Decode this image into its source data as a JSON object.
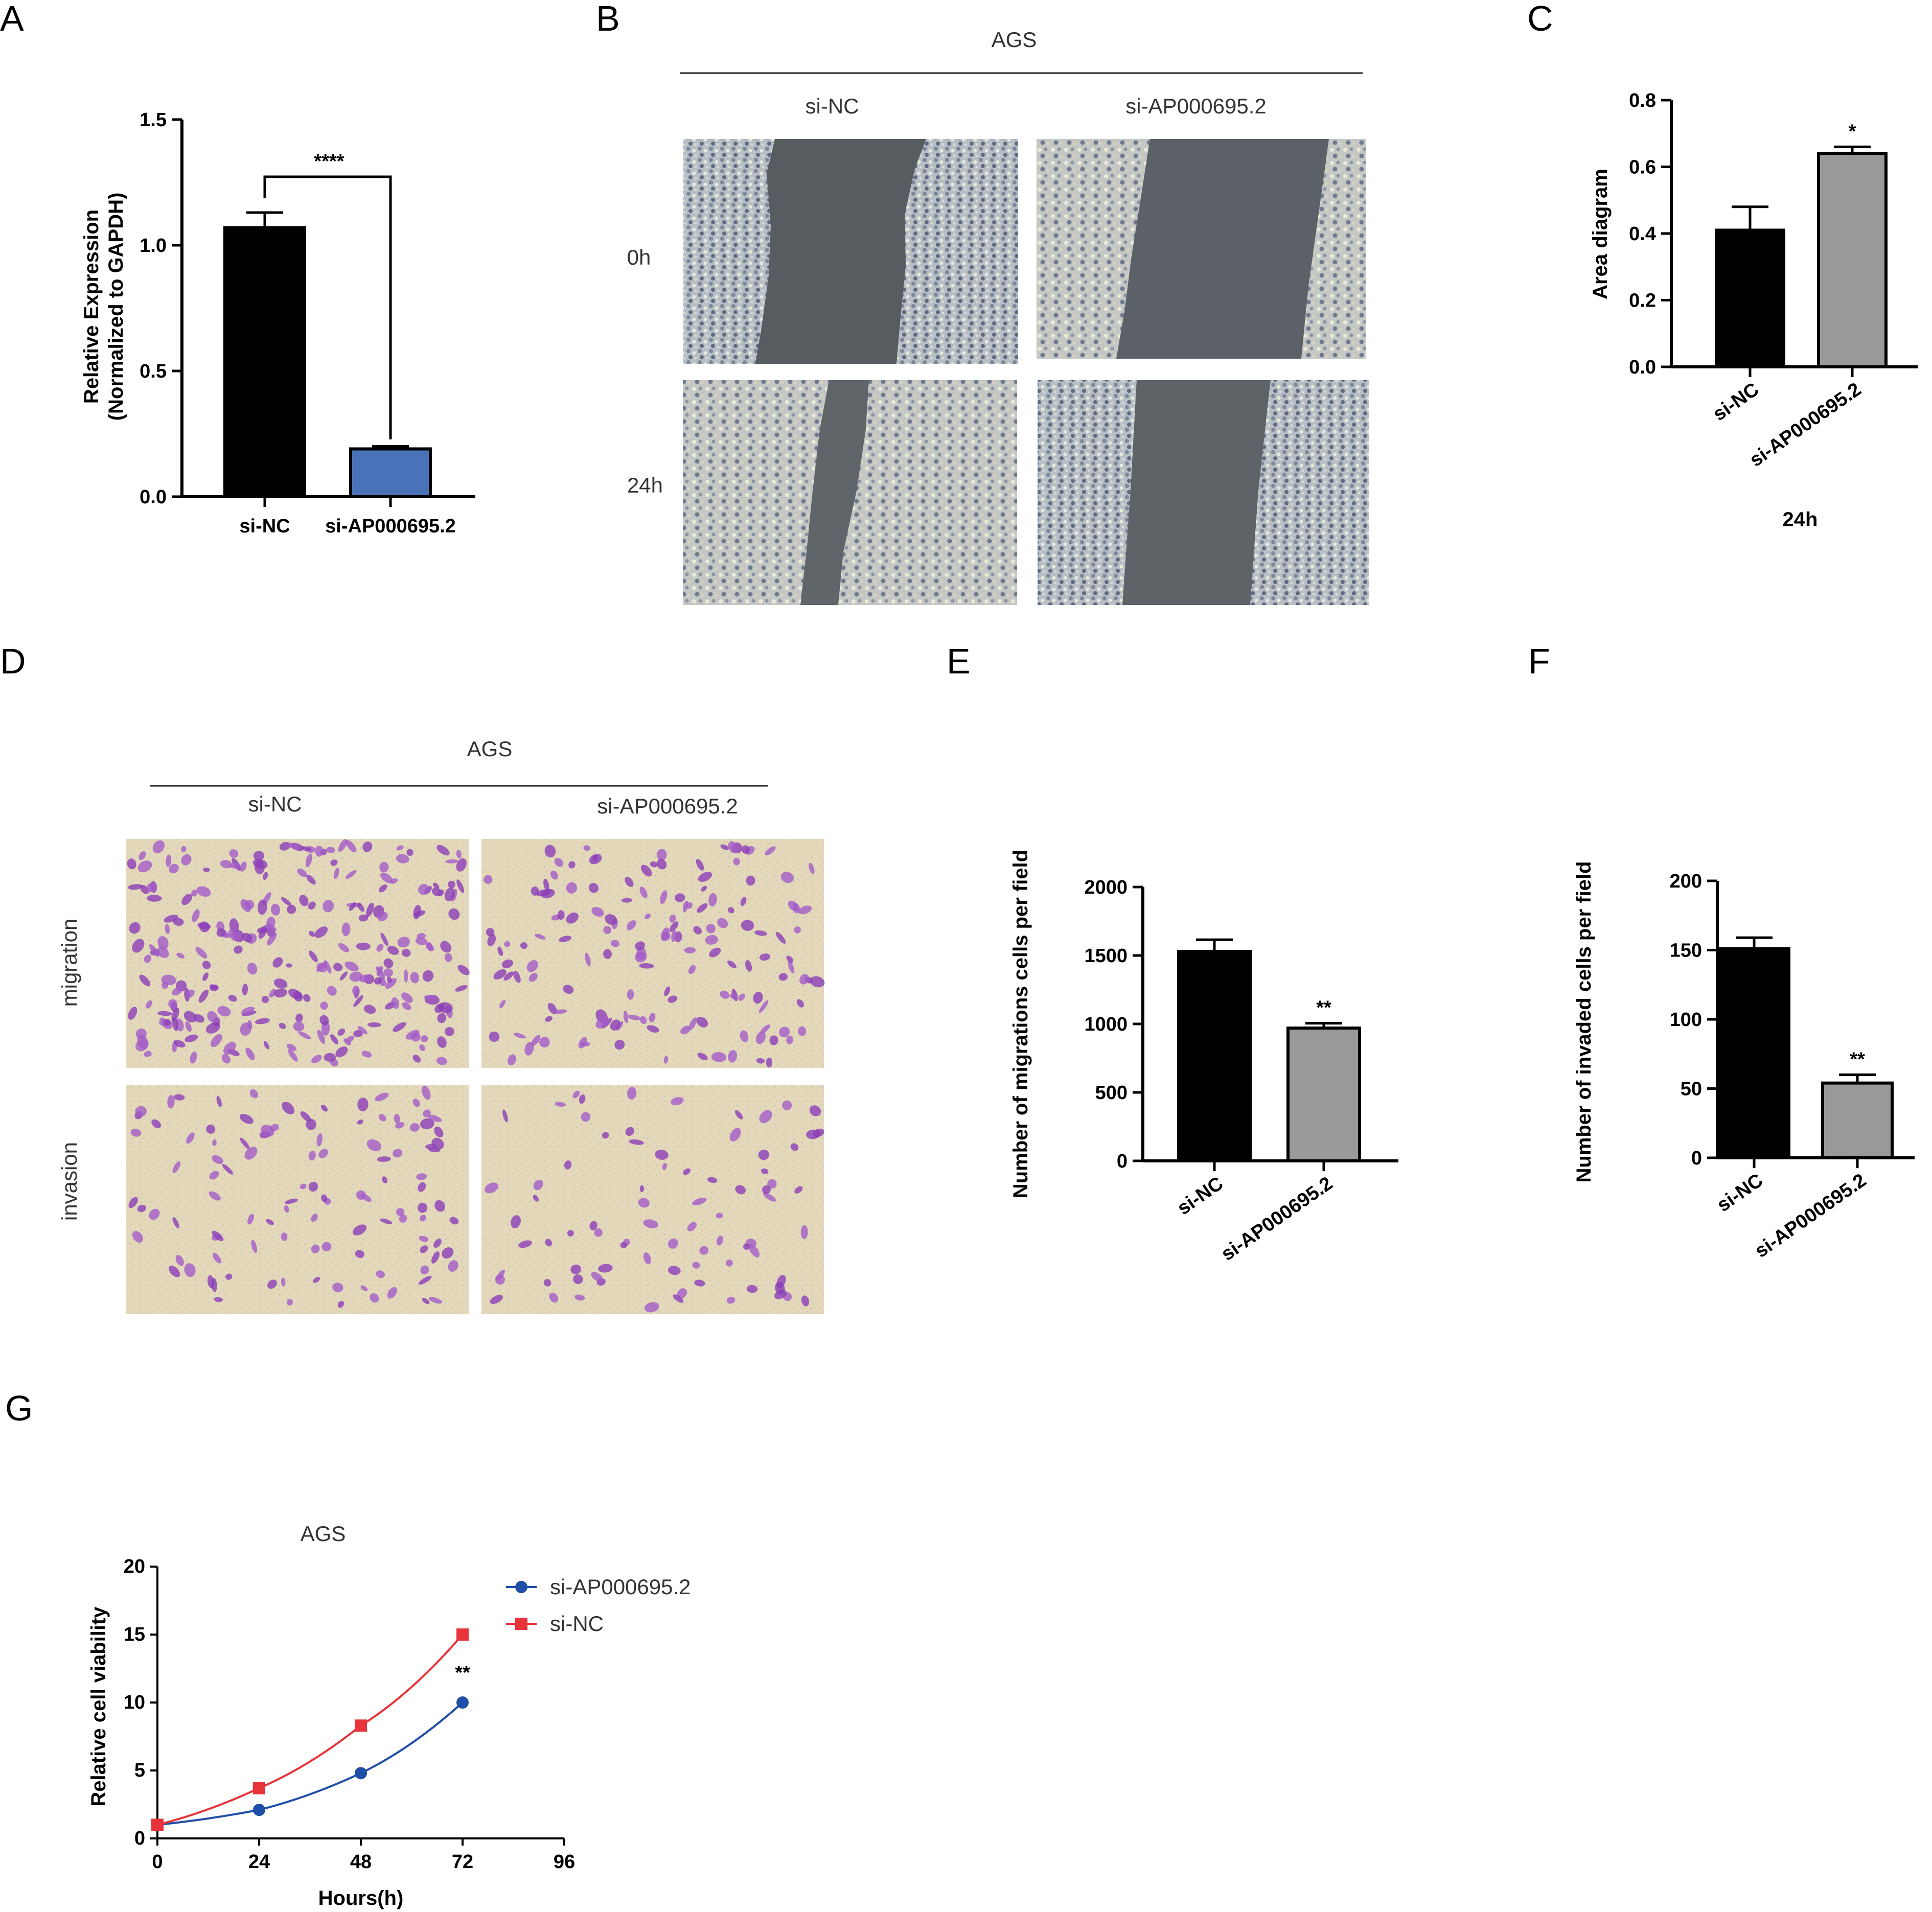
{
  "panels": {
    "A": {
      "letter": "A"
    },
    "B": {
      "letter": "B",
      "cell_line": "AGS",
      "col_labels": [
        "si-NC",
        "si-AP000695.2"
      ],
      "row_labels": [
        "0h",
        "24h"
      ]
    },
    "C": {
      "letter": "C",
      "time_label": "24h"
    },
    "D": {
      "letter": "D",
      "cell_line": "AGS",
      "col_labels": [
        "si-NC",
        "si-AP000695.2"
      ],
      "row_labels": [
        "migration",
        "invasion"
      ]
    },
    "E": {
      "letter": "E"
    },
    "F": {
      "letter": "F"
    },
    "G": {
      "letter": "G"
    }
  },
  "colors": {
    "black_bar": "#000000",
    "blue_bar": "#4a72b8",
    "gray_bar": "#999999",
    "si_ap_line": "#1f4ea8",
    "si_nc_line": "#e8333a",
    "wound_gap": "#565c60",
    "cell_bg": "#b9bfc7",
    "transwell_bg": "#e2d7b8",
    "transwell_cell": "#8b3fb8"
  },
  "chart_data": [
    {
      "panel": "A",
      "type": "bar",
      "categories": [
        "si-NC",
        "si-AP000695.2"
      ],
      "values": [
        1.07,
        0.19
      ],
      "errors": [
        0.06,
        0.01
      ],
      "bar_colors": [
        "#000000",
        "#4a72b8"
      ],
      "ylabel_lines": [
        "Relative Expression",
        "(Normalized to GAPDH)"
      ],
      "yticks": [
        "0.0",
        "0.5",
        "1.0",
        "1.5"
      ],
      "ylim": [
        0,
        1.5
      ],
      "significance": "****"
    },
    {
      "panel": "C",
      "type": "bar",
      "categories": [
        "si-NC",
        "si-AP000695.2"
      ],
      "values": [
        0.41,
        0.64
      ],
      "errors": [
        0.07,
        0.02
      ],
      "bar_colors": [
        "#000000",
        "#999999"
      ],
      "ylabel": "Area diagram",
      "xlabel": "24h",
      "yticks": [
        "0.0",
        "0.2",
        "0.4",
        "0.6",
        "0.8"
      ],
      "ylim": [
        0,
        0.8
      ],
      "annotations": [
        "",
        "*"
      ]
    },
    {
      "panel": "E",
      "type": "bar",
      "categories": [
        "si-NC",
        "si-AP000695.2"
      ],
      "values": [
        1530,
        970
      ],
      "errors": [
        85,
        35
      ],
      "bar_colors": [
        "#000000",
        "#999999"
      ],
      "ylabel": "Number of migrations cells per field",
      "yticks": [
        "0",
        "500",
        "1000",
        "1500",
        "2000"
      ],
      "ylim": [
        0,
        2000
      ],
      "annotations": [
        "",
        "**"
      ]
    },
    {
      "panel": "F",
      "type": "bar",
      "categories": [
        "si-NC",
        "si-AP000695.2"
      ],
      "values": [
        151,
        54
      ],
      "errors": [
        8,
        6
      ],
      "bar_colors": [
        "#000000",
        "#999999"
      ],
      "ylabel": "Number of invaded cells per field",
      "yticks": [
        "0",
        "50",
        "100",
        "150",
        "200"
      ],
      "ylim": [
        0,
        200
      ],
      "annotations": [
        "",
        "**"
      ]
    },
    {
      "panel": "G",
      "type": "line",
      "title": "AGS",
      "xlabel": "Hours(h)",
      "ylabel": "Relative cell viability",
      "xticks": [
        "0",
        "24",
        "48",
        "72",
        "96"
      ],
      "yticks": [
        "0",
        "5",
        "10",
        "15",
        "20"
      ],
      "xlim": [
        0,
        96
      ],
      "ylim": [
        0,
        20
      ],
      "x": [
        0,
        24,
        48,
        72
      ],
      "series": [
        {
          "name": "si-AP000695.2",
          "values": [
            1.0,
            2.1,
            4.8,
            10.0
          ],
          "color": "#1f4ea8",
          "marker": "circle"
        },
        {
          "name": "si-NC",
          "values": [
            1.0,
            3.7,
            8.3,
            15.0
          ],
          "color": "#e8333a",
          "marker": "square"
        }
      ],
      "annotation": "**",
      "legend": "top-right"
    }
  ]
}
